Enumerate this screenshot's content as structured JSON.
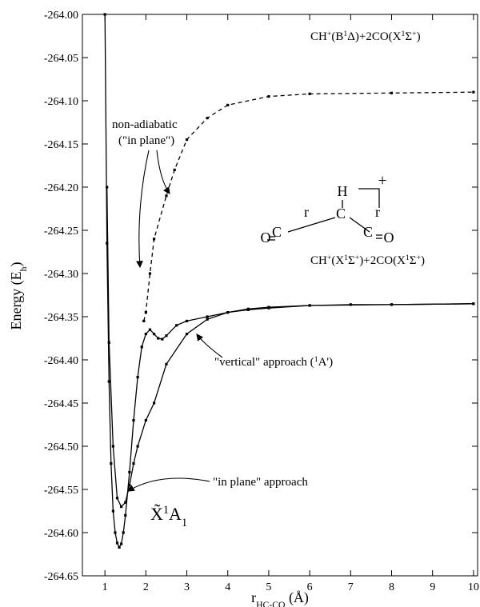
{
  "chart_data": {
    "type": "line",
    "xlim": [
      0.45,
      10.1
    ],
    "ylim": [
      -264.65,
      -264.0
    ],
    "xticks": [
      1,
      2,
      3,
      4,
      5,
      6,
      7,
      8,
      9,
      10
    ],
    "yticks": [
      {
        "value": -264.0,
        "label": "-264.00"
      },
      {
        "value": -264.05,
        "label": "-264.05"
      },
      {
        "value": -264.1,
        "label": "-264.10"
      },
      {
        "value": -264.15,
        "label": "-264.15"
      },
      {
        "value": -264.2,
        "label": "-264.20"
      },
      {
        "value": -264.25,
        "label": "-264.25"
      },
      {
        "value": -264.3,
        "label": "-264.30"
      },
      {
        "value": -264.35,
        "label": "-264.35"
      },
      {
        "value": -264.4,
        "label": "-264.40"
      },
      {
        "value": -264.45,
        "label": "-264.45"
      },
      {
        "value": -264.5,
        "label": "-264.50"
      },
      {
        "value": -264.55,
        "label": "-264.55"
      },
      {
        "value": -264.6,
        "label": "-264.60"
      },
      {
        "value": -264.65,
        "label": "-264.65"
      }
    ],
    "xlabel": [
      {
        "text": "r"
      },
      {
        "text": "HC-CO",
        "sub": true
      },
      {
        "text": " (Å)"
      }
    ],
    "ylabel": [
      {
        "text": "Energy (E"
      },
      {
        "text": "h",
        "sub": true
      },
      {
        "text": ")"
      }
    ],
    "series": [
      {
        "color": "#000",
        "dash": false,
        "x": [
          1.0,
          1.05,
          1.1,
          1.15,
          1.2,
          1.25,
          1.3,
          1.35,
          1.4,
          1.45,
          1.5,
          1.6,
          1.7,
          1.8,
          1.9,
          2.0,
          2.1,
          2.2,
          2.3,
          2.4,
          2.5,
          2.75,
          3.0,
          3.5,
          4.0,
          4.5,
          5.0,
          6.0,
          7.0,
          8.0,
          10.0
        ],
        "values": [
          -264.0,
          -264.265,
          -264.425,
          -264.52,
          -264.575,
          -264.6,
          -264.612,
          -264.617,
          -264.613,
          -264.6,
          -264.58,
          -264.53,
          -264.47,
          -264.42,
          -264.385,
          -264.37,
          -264.365,
          -264.37,
          -264.375,
          -264.376,
          -264.372,
          -264.36,
          -264.355,
          -264.35,
          -264.345,
          -264.341,
          -264.339,
          -264.337,
          -264.336,
          -264.336,
          -264.335
        ]
      },
      {
        "color": "#000",
        "dash": false,
        "x": [
          1.05,
          1.1,
          1.2,
          1.3,
          1.4,
          1.5,
          1.6,
          1.7,
          1.8,
          2.0,
          2.2,
          2.5,
          3.0,
          3.5,
          4.0,
          4.5,
          5.0,
          6.0,
          8.0,
          10.0
        ],
        "values": [
          -264.2,
          -264.38,
          -264.5,
          -264.56,
          -264.57,
          -264.565,
          -264.545,
          -264.52,
          -264.5,
          -264.47,
          -264.45,
          -264.405,
          -264.37,
          -264.353,
          -264.345,
          -264.342,
          -264.34,
          -264.337,
          -264.336,
          -264.335
        ]
      },
      {
        "color": "#000",
        "dash": true,
        "x": [
          1.95,
          2.0,
          2.1,
          2.2,
          2.5,
          2.7,
          3.0,
          3.5,
          4.0,
          5.0,
          6.0,
          8.0,
          10.0
        ],
        "values": [
          -264.355,
          -264.345,
          -264.3,
          -264.26,
          -264.21,
          -264.18,
          -264.145,
          -264.12,
          -264.105,
          -264.095,
          -264.092,
          -264.091,
          -264.09
        ]
      }
    ],
    "annotations": [
      {
        "parts": [
          {
            "text": "CH"
          },
          {
            "text": "+",
            "sup": true
          },
          {
            "text": "(B"
          },
          {
            "text": "1",
            "sup": true
          },
          {
            "text": "Δ)+2CO(X"
          },
          {
            "text": "1",
            "sup": true
          },
          {
            "text": "Σ"
          },
          {
            "text": "+",
            "sup": true
          },
          {
            "text": ")"
          }
        ]
      },
      {
        "parts": [
          {
            "text": "non-adiabatic"
          }
        ]
      },
      {
        "parts": [
          {
            "text": "(\"in plane\")"
          }
        ]
      },
      {
        "parts": [
          {
            "text": "CH"
          },
          {
            "text": "+",
            "sup": true
          },
          {
            "text": "(X"
          },
          {
            "text": "1",
            "sup": true
          },
          {
            "text": "Σ"
          },
          {
            "text": "+",
            "sup": true
          },
          {
            "text": ")+2CO(X"
          },
          {
            "text": "1",
            "sup": true
          },
          {
            "text": "Σ"
          },
          {
            "text": "+",
            "sup": true
          },
          {
            "text": ")"
          }
        ]
      },
      {
        "parts": [
          {
            "text": "\"vertical\" approach ("
          },
          {
            "text": "1",
            "sup": true
          },
          {
            "text": "A')"
          }
        ]
      },
      {
        "parts": [
          {
            "text": "\"in plane\" approach"
          }
        ]
      },
      {
        "parts": [
          {
            "text": "X̃"
          },
          {
            "text": "1",
            "sup": true
          },
          {
            "text": "A"
          },
          {
            "text": "1",
            "sub": true
          }
        ]
      }
    ],
    "structure_labels": [
      "H",
      "r",
      "C",
      "r",
      "O",
      "C",
      "C",
      "O",
      "+"
    ]
  }
}
